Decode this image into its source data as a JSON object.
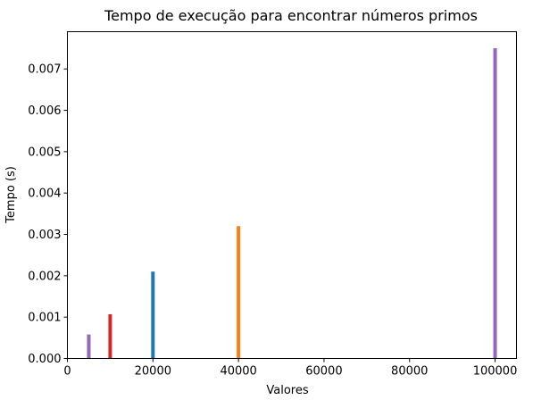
{
  "chart_data": {
    "type": "bar",
    "title": "Tempo de execução para encontrar números primos",
    "xlabel": "Valores",
    "ylabel": "Tempo (s)",
    "xlim": [
      0,
      105000
    ],
    "ylim": [
      0,
      0.0079
    ],
    "grid": false,
    "x_ticks": [
      "0",
      "20000",
      "40000",
      "60000",
      "80000",
      "100000"
    ],
    "x_tick_values": [
      0,
      20000,
      40000,
      60000,
      80000,
      100000
    ],
    "y_ticks": [
      "0.000",
      "0.001",
      "0.002",
      "0.003",
      "0.004",
      "0.005",
      "0.006",
      "0.007"
    ],
    "y_tick_values": [
      0,
      0.001,
      0.002,
      0.003,
      0.004,
      0.005,
      0.006,
      0.007
    ],
    "bars": [
      {
        "x": 5000,
        "value": 0.00058,
        "color": "#9467bd"
      },
      {
        "x": 10000,
        "value": 0.00107,
        "color": "#d62728"
      },
      {
        "x": 20000,
        "value": 0.0021,
        "color": "#1f77b4"
      },
      {
        "x": 40000,
        "value": 0.0032,
        "color": "#ff7f0e"
      },
      {
        "x": 100000,
        "value": 0.0075,
        "color": "#9467bd"
      }
    ]
  }
}
